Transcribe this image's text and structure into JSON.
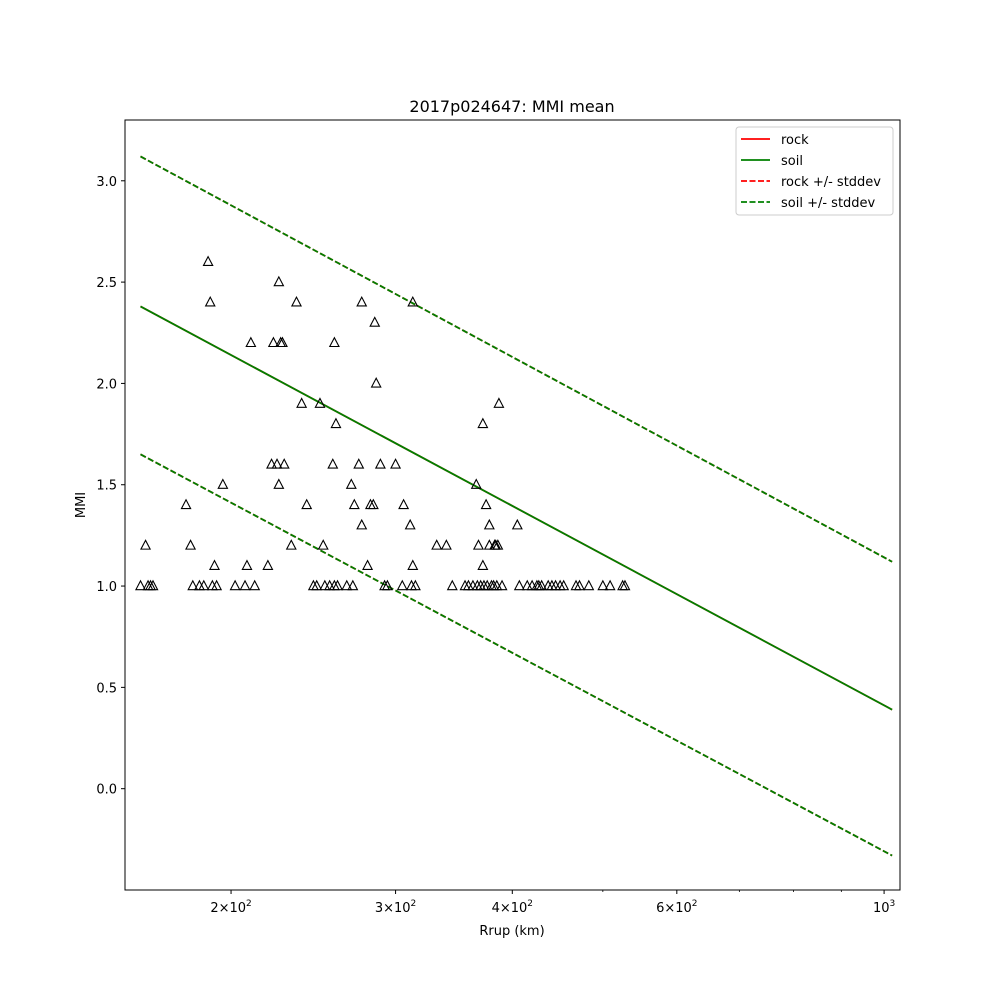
{
  "chart_data": {
    "type": "scatter",
    "title": "2017p024647: MMI mean",
    "xlabel": "Rrup (km)",
    "ylabel": "MMI",
    "xscale": "log",
    "xlim": [
      154,
      1040
    ],
    "ylim": [
      -0.5,
      3.3
    ],
    "grid": false,
    "legend_position": "top-right",
    "x_ticks": [
      {
        "value": 200,
        "base": "2",
        "exp": "2"
      },
      {
        "value": 300,
        "base": "3",
        "exp": "2"
      },
      {
        "value": 400,
        "base": "4",
        "exp": "2"
      },
      {
        "value": 600,
        "base": "6",
        "exp": "2"
      },
      {
        "value": 1000,
        "base": "10",
        "exp": "3"
      }
    ],
    "x_minor_ticks": [
      500,
      700,
      800,
      900
    ],
    "y_ticks": [
      "0.0",
      "0.5",
      "1.0",
      "1.5",
      "2.0",
      "2.5",
      "3.0"
    ],
    "series": [
      {
        "name": "rock",
        "color": "#ff0000",
        "style": "solid",
        "x": [
          160,
          1020
        ],
        "y": [
          2.38,
          0.39
        ]
      },
      {
        "name": "soil",
        "color": "#008000",
        "style": "solid",
        "x": [
          160,
          1020
        ],
        "y": [
          2.38,
          0.39
        ]
      },
      {
        "name": "rock +/- stddev",
        "color": "#ff0000",
        "style": "dashed",
        "segments": [
          {
            "x": [
              160,
              1020
            ],
            "y": [
              3.12,
              1.12
            ]
          },
          {
            "x": [
              160,
              1020
            ],
            "y": [
              1.65,
              -0.33
            ]
          }
        ]
      },
      {
        "name": "soil +/- stddev",
        "color": "#008000",
        "style": "dashed",
        "segments": [
          {
            "x": [
              160,
              1020
            ],
            "y": [
              3.12,
              1.12
            ]
          },
          {
            "x": [
              160,
              1020
            ],
            "y": [
              1.65,
              -0.33
            ]
          }
        ]
      }
    ],
    "observations": {
      "marker": "triangle-open",
      "color": "#000000",
      "points": [
        [
          160,
          1.0
        ],
        [
          162,
          1.2
        ],
        [
          163,
          1.0
        ],
        [
          164,
          1.0
        ],
        [
          165,
          1.0
        ],
        [
          179,
          1.4
        ],
        [
          181,
          1.2
        ],
        [
          182,
          1.0
        ],
        [
          185,
          1.0
        ],
        [
          187,
          1.0
        ],
        [
          189,
          2.6
        ],
        [
          190,
          2.4
        ],
        [
          191,
          1.0
        ],
        [
          192,
          1.1
        ],
        [
          193,
          1.0
        ],
        [
          196,
          1.5
        ],
        [
          202,
          1.0
        ],
        [
          207,
          1.0
        ],
        [
          208,
          1.1
        ],
        [
          210,
          2.2
        ],
        [
          212,
          1.0
        ],
        [
          219,
          1.1
        ],
        [
          221,
          1.6
        ],
        [
          222,
          2.2
        ],
        [
          224,
          1.6
        ],
        [
          225,
          2.5
        ],
        [
          225,
          1.5
        ],
        [
          226,
          2.2
        ],
        [
          227,
          2.2
        ],
        [
          228,
          1.6
        ],
        [
          232,
          1.2
        ],
        [
          235,
          2.4
        ],
        [
          238,
          1.9
        ],
        [
          241,
          1.4
        ],
        [
          245,
          1.0
        ],
        [
          247,
          1.0
        ],
        [
          249,
          1.9
        ],
        [
          251,
          1.2
        ],
        [
          252,
          1.0
        ],
        [
          255,
          1.0
        ],
        [
          257,
          1.6
        ],
        [
          258,
          2.2
        ],
        [
          258,
          1.0
        ],
        [
          259,
          1.8
        ],
        [
          260,
          1.0
        ],
        [
          266,
          1.0
        ],
        [
          269,
          1.5
        ],
        [
          270,
          1.0
        ],
        [
          271,
          1.4
        ],
        [
          274,
          1.6
        ],
        [
          276,
          1.3
        ],
        [
          276,
          2.4
        ],
        [
          280,
          1.1
        ],
        [
          282,
          1.4
        ],
        [
          284,
          1.4
        ],
        [
          285,
          2.3
        ],
        [
          286,
          2.0
        ],
        [
          289,
          1.6
        ],
        [
          292,
          1.0
        ],
        [
          294,
          1.0
        ],
        [
          300,
          1.6
        ],
        [
          305,
          1.0
        ],
        [
          306,
          1.4
        ],
        [
          311,
          1.3
        ],
        [
          312,
          1.0
        ],
        [
          313,
          1.1
        ],
        [
          313,
          2.4
        ],
        [
          315,
          1.0
        ],
        [
          332,
          1.2
        ],
        [
          340,
          1.2
        ],
        [
          345,
          1.0
        ],
        [
          356,
          1.0
        ],
        [
          359,
          1.0
        ],
        [
          363,
          1.0
        ],
        [
          366,
          1.5
        ],
        [
          367,
          1.0
        ],
        [
          368,
          1.2
        ],
        [
          370,
          1.0
        ],
        [
          372,
          1.8
        ],
        [
          372,
          1.1
        ],
        [
          373,
          1.0
        ],
        [
          375,
          1.4
        ],
        [
          376,
          1.0
        ],
        [
          378,
          1.3
        ],
        [
          378,
          1.2
        ],
        [
          380,
          1.0
        ],
        [
          382,
          1.0
        ],
        [
          383,
          1.2
        ],
        [
          384,
          1.2
        ],
        [
          385,
          1.0
        ],
        [
          386,
          1.2
        ],
        [
          387,
          1.9
        ],
        [
          390,
          1.0
        ],
        [
          405,
          1.3
        ],
        [
          407,
          1.0
        ],
        [
          415,
          1.0
        ],
        [
          420,
          1.0
        ],
        [
          425,
          1.0
        ],
        [
          427,
          1.0
        ],
        [
          430,
          1.0
        ],
        [
          437,
          1.0
        ],
        [
          441,
          1.0
        ],
        [
          445,
          1.0
        ],
        [
          450,
          1.0
        ],
        [
          454,
          1.0
        ],
        [
          468,
          1.0
        ],
        [
          472,
          1.0
        ],
        [
          483,
          1.0
        ],
        [
          500,
          1.0
        ],
        [
          509,
          1.0
        ],
        [
          525,
          1.0
        ],
        [
          528,
          1.0
        ]
      ]
    }
  }
}
